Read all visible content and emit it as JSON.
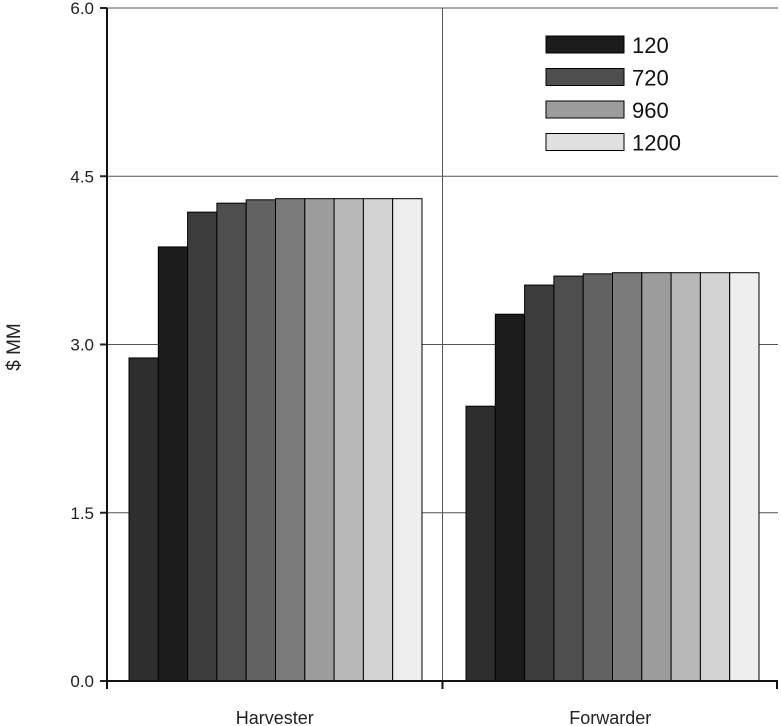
{
  "chart_data": {
    "type": "bar",
    "title": "",
    "xlabel": "",
    "ylabel": "$ MM",
    "ylim": [
      0,
      6
    ],
    "yticks": [
      "0.0",
      "1.5",
      "3.0",
      "4.5",
      "6.0"
    ],
    "grid": true,
    "legend_position": "top-right",
    "categories": [
      "Harvester",
      "Forwarder"
    ],
    "series_count": 10,
    "colors": [
      "#2e2e2e",
      "#1c1c1c",
      "#3c3c3c",
      "#4e4e4e",
      "#626262",
      "#7a7a7a",
      "#9c9c9c",
      "#b8b8b8",
      "#d2d2d2",
      "#eeeeee"
    ],
    "values": [
      [
        2.88,
        3.87,
        4.18,
        4.26,
        4.29,
        4.3,
        4.3,
        4.3,
        4.3,
        4.3
      ],
      [
        2.45,
        3.27,
        3.53,
        3.61,
        3.63,
        3.64,
        3.64,
        3.64,
        3.64,
        3.64
      ]
    ],
    "legend": [
      {
        "label": "120",
        "color": "#1c1c1c"
      },
      {
        "label": "720",
        "color": "#4e4e4e"
      },
      {
        "label": "960",
        "color": "#9c9c9c"
      },
      {
        "label": "1200",
        "color": "#e0e0e0"
      }
    ]
  }
}
